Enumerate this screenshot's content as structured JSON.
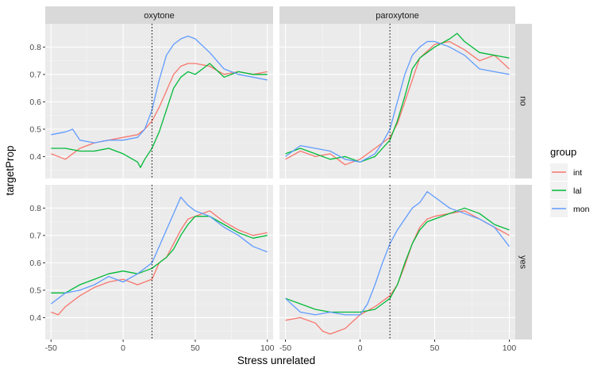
{
  "chart_data": {
    "type": "line",
    "xlabel": "Stress unrelated",
    "ylabel": "targetProp",
    "xlim": [
      -54,
      104
    ],
    "ylim": [
      0.32,
      0.885
    ],
    "x_ticks": [
      -50,
      0,
      50,
      100
    ],
    "y_ticks": [
      0.4,
      0.5,
      0.6,
      0.7,
      0.8
    ],
    "x_tick_labels": [
      "-50",
      "0",
      "50",
      "100"
    ],
    "y_tick_labels": [
      "0.4",
      "0.5",
      "0.6",
      "0.7",
      "0.8"
    ],
    "vline_x": 20,
    "grid": true,
    "facet_cols": [
      "oxytone",
      "paroxytone"
    ],
    "facet_rows": [
      "no",
      "yes"
    ],
    "legend": {
      "title": "group",
      "position": "right",
      "entries": [
        {
          "label": "int",
          "color": "#F8766D"
        },
        {
          "label": "lal",
          "color": "#00BA38"
        },
        {
          "label": "mon",
          "color": "#619CFF"
        }
      ]
    },
    "panels": [
      {
        "col": "oxytone",
        "row": "no",
        "series": [
          {
            "group": "int",
            "x": [
              -50,
              -40,
              -30,
              -20,
              -10,
              0,
              10,
              15,
              20,
              25,
              30,
              35,
              40,
              45,
              50,
              60,
              70,
              80,
              90,
              100
            ],
            "y": [
              0.41,
              0.39,
              0.43,
              0.45,
              0.46,
              0.47,
              0.48,
              0.5,
              0.53,
              0.58,
              0.64,
              0.7,
              0.73,
              0.74,
              0.74,
              0.73,
              0.7,
              0.71,
              0.7,
              0.71
            ]
          },
          {
            "group": "lal",
            "x": [
              -50,
              -40,
              -30,
              -20,
              -10,
              0,
              10,
              12,
              15,
              20,
              25,
              30,
              35,
              40,
              45,
              50,
              60,
              70,
              80,
              90,
              100
            ],
            "y": [
              0.43,
              0.43,
              0.42,
              0.42,
              0.43,
              0.41,
              0.38,
              0.36,
              0.39,
              0.43,
              0.49,
              0.57,
              0.65,
              0.69,
              0.71,
              0.7,
              0.74,
              0.69,
              0.71,
              0.7,
              0.7
            ]
          },
          {
            "group": "mon",
            "x": [
              -50,
              -40,
              -35,
              -30,
              -20,
              -10,
              0,
              10,
              15,
              20,
              25,
              30,
              35,
              40,
              45,
              50,
              60,
              70,
              80,
              90,
              100
            ],
            "y": [
              0.48,
              0.49,
              0.5,
              0.46,
              0.45,
              0.46,
              0.46,
              0.47,
              0.5,
              0.57,
              0.68,
              0.77,
              0.81,
              0.83,
              0.84,
              0.83,
              0.78,
              0.72,
              0.7,
              0.69,
              0.68
            ]
          }
        ]
      },
      {
        "col": "paroxytone",
        "row": "no",
        "series": [
          {
            "group": "int",
            "x": [
              -50,
              -40,
              -30,
              -20,
              -10,
              0,
              10,
              15,
              20,
              25,
              30,
              35,
              40,
              50,
              60,
              70,
              80,
              90,
              100
            ],
            "y": [
              0.39,
              0.42,
              0.4,
              0.41,
              0.37,
              0.39,
              0.43,
              0.45,
              0.47,
              0.52,
              0.6,
              0.68,
              0.76,
              0.81,
              0.82,
              0.79,
              0.75,
              0.77,
              0.72
            ]
          },
          {
            "group": "lal",
            "x": [
              -50,
              -40,
              -30,
              -20,
              -10,
              0,
              10,
              15,
              20,
              25,
              30,
              35,
              40,
              45,
              50,
              60,
              65,
              70,
              80,
              90,
              100
            ],
            "y": [
              0.41,
              0.43,
              0.41,
              0.39,
              0.4,
              0.38,
              0.4,
              0.43,
              0.46,
              0.53,
              0.62,
              0.72,
              0.76,
              0.78,
              0.8,
              0.83,
              0.85,
              0.82,
              0.78,
              0.77,
              0.76
            ]
          },
          {
            "group": "mon",
            "x": [
              -50,
              -40,
              -30,
              -20,
              -10,
              0,
              10,
              15,
              20,
              25,
              30,
              35,
              40,
              45,
              50,
              60,
              70,
              80,
              90,
              100
            ],
            "y": [
              0.4,
              0.44,
              0.43,
              0.42,
              0.39,
              0.38,
              0.41,
              0.45,
              0.5,
              0.6,
              0.7,
              0.77,
              0.8,
              0.82,
              0.82,
              0.8,
              0.77,
              0.72,
              0.71,
              0.7
            ]
          }
        ]
      },
      {
        "col": "oxytone",
        "row": "yes",
        "series": [
          {
            "group": "int",
            "x": [
              -50,
              -45,
              -40,
              -30,
              -20,
              -10,
              0,
              10,
              15,
              20,
              25,
              30,
              35,
              40,
              45,
              50,
              60,
              70,
              80,
              90,
              100
            ],
            "y": [
              0.42,
              0.41,
              0.44,
              0.48,
              0.51,
              0.53,
              0.54,
              0.52,
              0.53,
              0.54,
              0.6,
              0.62,
              0.67,
              0.72,
              0.76,
              0.77,
              0.79,
              0.75,
              0.72,
              0.7,
              0.71
            ]
          },
          {
            "group": "lal",
            "x": [
              -50,
              -40,
              -30,
              -20,
              -10,
              0,
              10,
              20,
              25,
              30,
              35,
              40,
              45,
              50,
              60,
              70,
              80,
              90,
              100
            ],
            "y": [
              0.49,
              0.49,
              0.52,
              0.54,
              0.56,
              0.57,
              0.56,
              0.58,
              0.6,
              0.62,
              0.65,
              0.7,
              0.74,
              0.77,
              0.77,
              0.74,
              0.71,
              0.69,
              0.7
            ]
          },
          {
            "group": "mon",
            "x": [
              -50,
              -40,
              -30,
              -20,
              -10,
              0,
              10,
              20,
              25,
              30,
              35,
              40,
              45,
              50,
              60,
              70,
              80,
              90,
              100
            ],
            "y": [
              0.45,
              0.49,
              0.5,
              0.52,
              0.55,
              0.53,
              0.56,
              0.6,
              0.66,
              0.72,
              0.78,
              0.84,
              0.81,
              0.79,
              0.77,
              0.73,
              0.7,
              0.66,
              0.64
            ]
          }
        ]
      },
      {
        "col": "paroxytone",
        "row": "yes",
        "series": [
          {
            "group": "int",
            "x": [
              -50,
              -40,
              -30,
              -25,
              -20,
              -15,
              -10,
              0,
              10,
              15,
              20,
              25,
              30,
              35,
              40,
              45,
              50,
              60,
              70,
              80,
              90,
              100
            ],
            "y": [
              0.39,
              0.4,
              0.38,
              0.35,
              0.34,
              0.35,
              0.36,
              0.41,
              0.44,
              0.46,
              0.48,
              0.52,
              0.59,
              0.67,
              0.73,
              0.76,
              0.77,
              0.78,
              0.79,
              0.76,
              0.73,
              0.7
            ]
          },
          {
            "group": "lal",
            "x": [
              -50,
              -40,
              -30,
              -20,
              -10,
              0,
              10,
              15,
              20,
              25,
              30,
              35,
              40,
              45,
              50,
              60,
              70,
              80,
              90,
              100
            ],
            "y": [
              0.47,
              0.45,
              0.43,
              0.42,
              0.42,
              0.42,
              0.43,
              0.45,
              0.47,
              0.52,
              0.6,
              0.67,
              0.72,
              0.75,
              0.76,
              0.78,
              0.8,
              0.78,
              0.74,
              0.72
            ]
          },
          {
            "group": "mon",
            "x": [
              -50,
              -40,
              -30,
              -20,
              -10,
              0,
              5,
              10,
              15,
              20,
              25,
              30,
              35,
              40,
              45,
              50,
              60,
              70,
              80,
              90,
              100
            ],
            "y": [
              0.47,
              0.42,
              0.41,
              0.42,
              0.41,
              0.41,
              0.45,
              0.52,
              0.6,
              0.67,
              0.72,
              0.76,
              0.8,
              0.82,
              0.86,
              0.84,
              0.8,
              0.78,
              0.76,
              0.73,
              0.66
            ]
          }
        ]
      }
    ]
  }
}
